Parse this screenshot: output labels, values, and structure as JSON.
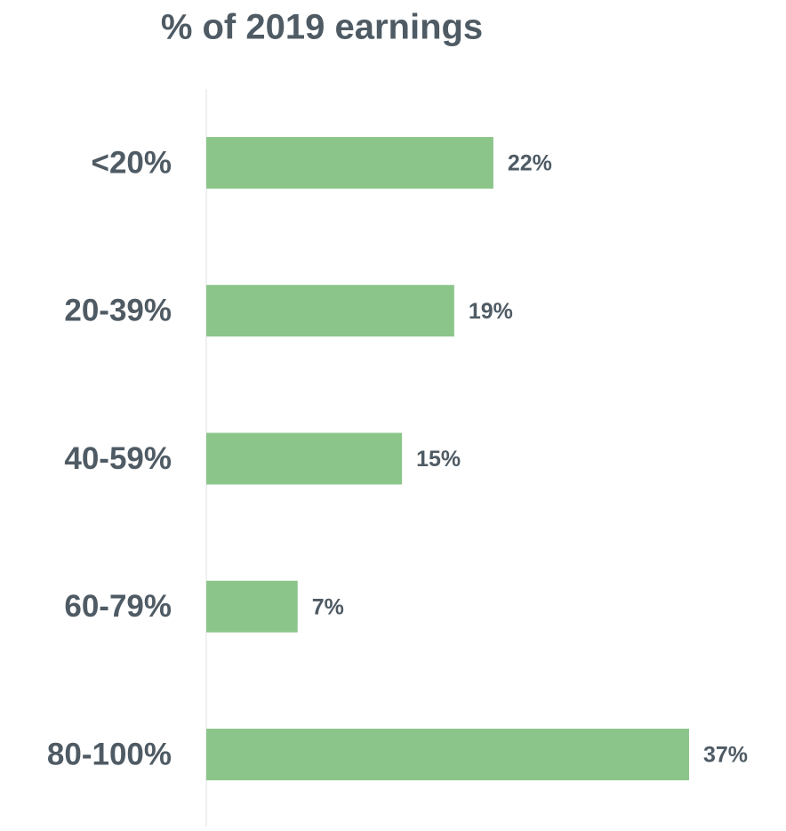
{
  "chart_data": {
    "type": "bar",
    "orientation": "horizontal",
    "title": "% of 2019 earnings",
    "categories": [
      "<20%",
      "20-39%",
      "40-59%",
      "60-79%",
      "80-100%"
    ],
    "values": [
      22,
      19,
      15,
      7,
      37
    ],
    "value_labels": [
      "22%",
      "19%",
      "15%",
      "7%",
      "37%"
    ],
    "color": "#8bc58a"
  }
}
